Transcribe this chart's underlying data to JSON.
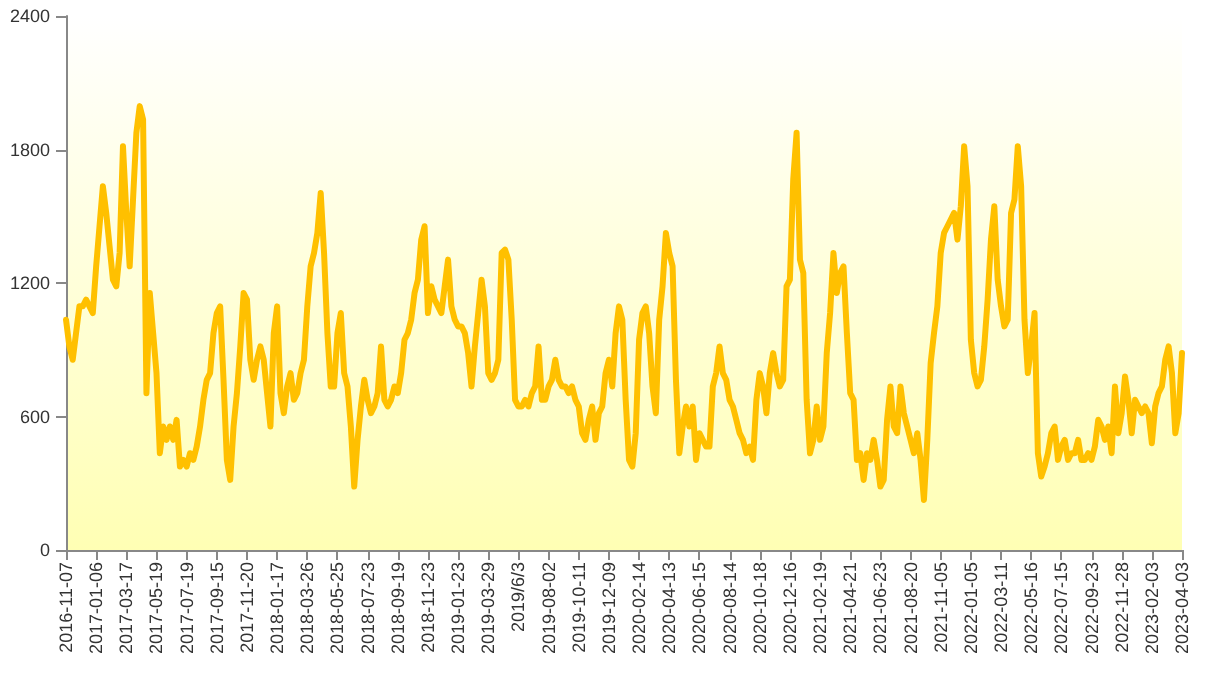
{
  "chart_data": {
    "type": "line",
    "line_style": "solid",
    "categories": [
      "2016-11-07",
      null,
      null,
      null,
      null,
      null,
      null,
      null,
      null,
      "2017-01-06",
      null,
      null,
      null,
      null,
      null,
      null,
      null,
      null,
      "2017-03-17",
      null,
      null,
      null,
      null,
      null,
      null,
      null,
      null,
      "2017-05-19",
      null,
      null,
      null,
      null,
      null,
      null,
      null,
      null,
      "2017-07-19",
      null,
      null,
      null,
      null,
      null,
      null,
      null,
      null,
      "2017-09-15",
      null,
      null,
      null,
      null,
      null,
      null,
      null,
      null,
      "2017-11-20",
      null,
      null,
      null,
      null,
      null,
      null,
      null,
      null,
      "2018-01-17",
      null,
      null,
      null,
      null,
      null,
      null,
      null,
      null,
      "2018-03-26",
      null,
      null,
      null,
      null,
      null,
      null,
      null,
      null,
      "2018-05-25",
      null,
      null,
      null,
      null,
      null,
      null,
      null,
      null,
      "2018-07-23",
      null,
      null,
      null,
      null,
      null,
      null,
      null,
      null,
      "2018-09-19",
      null,
      null,
      null,
      null,
      null,
      null,
      null,
      null,
      "2018-11-23",
      null,
      null,
      null,
      null,
      null,
      null,
      null,
      null,
      "2019-01-23",
      null,
      null,
      null,
      null,
      null,
      null,
      null,
      null,
      "2019-03-29",
      null,
      null,
      null,
      null,
      null,
      null,
      null,
      null,
      "2019/6/3",
      null,
      null,
      null,
      null,
      null,
      null,
      null,
      null,
      "2019-08-02",
      null,
      null,
      null,
      null,
      null,
      null,
      null,
      null,
      "2019-10-11",
      null,
      null,
      null,
      null,
      null,
      null,
      null,
      null,
      "2019-12-09",
      null,
      null,
      null,
      null,
      null,
      null,
      null,
      null,
      "2020-02-14",
      null,
      null,
      null,
      null,
      null,
      null,
      null,
      null,
      "2020-04-13",
      null,
      null,
      null,
      null,
      null,
      null,
      null,
      null,
      "2020-06-15",
      null,
      null,
      null,
      null,
      null,
      null,
      null,
      null,
      "2020-08-14",
      null,
      null,
      null,
      null,
      null,
      null,
      null,
      null,
      "2020-10-18",
      null,
      null,
      null,
      null,
      null,
      null,
      null,
      null,
      "2020-12-16",
      null,
      null,
      null,
      null,
      null,
      null,
      null,
      null,
      "2021-02-19",
      null,
      null,
      null,
      null,
      null,
      null,
      null,
      null,
      "2021-04-21",
      null,
      null,
      null,
      null,
      null,
      null,
      null,
      null,
      "2021-06-23",
      null,
      null,
      null,
      null,
      null,
      null,
      null,
      null,
      "2021-08-20",
      null,
      null,
      null,
      null,
      null,
      null,
      null,
      null,
      "2021-11-05",
      null,
      null,
      null,
      null,
      null,
      null,
      null,
      null,
      "2022-01-05",
      null,
      null,
      null,
      null,
      null,
      null,
      null,
      null,
      "2022-03-11",
      null,
      null,
      null,
      null,
      null,
      null,
      null,
      null,
      "2022-05-16",
      null,
      null,
      null,
      null,
      null,
      null,
      null,
      null,
      "2022-07-15",
      null,
      null,
      null,
      null,
      null,
      null,
      null,
      null,
      "2022-09-23",
      null,
      null,
      null,
      null,
      null,
      null,
      null,
      null,
      "2022-11-28",
      null,
      null,
      null,
      null,
      null,
      null,
      null,
      null,
      "2023-02-03",
      null,
      null,
      null,
      null,
      null,
      null,
      null,
      null,
      "2023-04-03"
    ],
    "series": [
      {
        "color": "#ffc000",
        "values": [
          1035,
          915,
          855,
          975,
          1095,
          1095,
          1125,
          1095,
          1065,
          1275,
          1455,
          1635,
          1515,
          1365,
          1215,
          1185,
          1335,
          1815,
          1515,
          1275,
          1575,
          1875,
          1995,
          1935,
          705,
          1155,
          975,
          795,
          435,
          555,
          495,
          555,
          495,
          585,
          375,
          405,
          375,
          435,
          405,
          465,
          555,
          675,
          765,
          795,
          975,
          1065,
          1095,
          765,
          405,
          315,
          555,
          705,
          915,
          1155,
          1125,
          855,
          765,
          855,
          915,
          855,
          705,
          555,
          975,
          1095,
          705,
          615,
          735,
          795,
          675,
          705,
          795,
          855,
          1095,
          1275,
          1335,
          1425,
          1605,
          1335,
          975,
          735,
          735,
          975,
          1065,
          795,
          735,
          555,
          285,
          495,
          645,
          765,
          675,
          615,
          645,
          705,
          915,
          675,
          645,
          675,
          735,
          705,
          795,
          945,
          975,
          1035,
          1155,
          1215,
          1395,
          1455,
          1065,
          1185,
          1125,
          1095,
          1065,
          1185,
          1305,
          1095,
          1035,
          1005,
          1005,
          975,
          885,
          735,
          915,
          1065,
          1215,
          1095,
          795,
          765,
          795,
          855,
          1335,
          1350,
          1305,
          1035,
          675,
          645,
          645,
          675,
          645,
          705,
          735,
          915,
          675,
          675,
          735,
          765,
          855,
          765,
          735,
          735,
          705,
          735,
          675,
          645,
          525,
          495,
          585,
          645,
          495,
          615,
          645,
          795,
          855,
          735,
          975,
          1095,
          1035,
          675,
          405,
          375,
          525,
          945,
          1065,
          1095,
          975,
          735,
          615,
          1035,
          1185,
          1425,
          1335,
          1275,
          765,
          435,
          555,
          645,
          555,
          645,
          405,
          525,
          495,
          465,
          465,
          735,
          795,
          915,
          795,
          765,
          675,
          645,
          585,
          525,
          495,
          435,
          465,
          405,
          675,
          795,
          735,
          615,
          795,
          885,
          795,
          735,
          765,
          1185,
          1215,
          1665,
          1875,
          1305,
          1245,
          675,
          435,
          495,
          645,
          495,
          555,
          885,
          1065,
          1335,
          1155,
          1245,
          1275,
          975,
          705,
          675,
          405,
          435,
          315,
          435,
          405,
          495,
          405,
          285,
          315,
          585,
          735,
          555,
          525,
          735,
          615,
          555,
          495,
          435,
          525,
          405,
          225,
          495,
          840,
          975,
          1095,
          1335,
          1425,
          1455,
          1485,
          1515,
          1395,
          1545,
          1815,
          1635,
          945,
          795,
          735,
          765,
          915,
          1125,
          1395,
          1545,
          1215,
          1095,
          1005,
          1035,
          1515,
          1575,
          1815,
          1635,
          1035,
          795,
          915,
          1065,
          435,
          330,
          375,
          435,
          525,
          555,
          405,
          465,
          495,
          405,
          435,
          435,
          495,
          405,
          405,
          435,
          405,
          465,
          585,
          555,
          495,
          555,
          435,
          735,
          525,
          615,
          780,
          675,
          525,
          675,
          645,
          615,
          645,
          615,
          480,
          645,
          705,
          735,
          855,
          915,
          795,
          525,
          615,
          885
        ]
      }
    ],
    "ylim": [
      0,
      2400
    ],
    "yticks": [
      0,
      600,
      1200,
      1800,
      2400
    ]
  }
}
